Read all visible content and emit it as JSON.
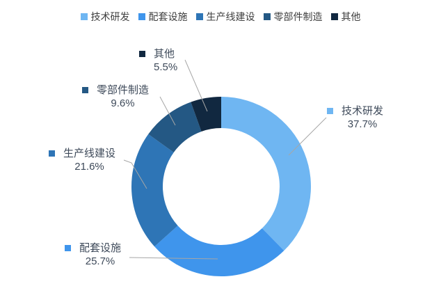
{
  "chart_data": {
    "type": "pie",
    "subtype": "donut",
    "title": "",
    "categories": [
      "技术研发",
      "配套设施",
      "生产线建设",
      "零部件制造",
      "其他"
    ],
    "values": [
      37.7,
      25.7,
      21.6,
      9.6,
      5.5
    ],
    "labels": [
      "37.7%",
      "25.7%",
      "21.6%",
      "9.6%",
      "5.5%"
    ],
    "colors": [
      "#6FB6F2",
      "#3F95EC",
      "#2E75B6",
      "#245884",
      "#112840"
    ],
    "legend_position": "top",
    "start_angle_deg": 0,
    "direction": "clockwise",
    "donut_hole_ratio": 0.65,
    "background_color": "#FFFFFF",
    "leader_line_color": "#A6A6A6",
    "data_label_color": "#3E4A5A",
    "legend_text_color": "#404040"
  }
}
